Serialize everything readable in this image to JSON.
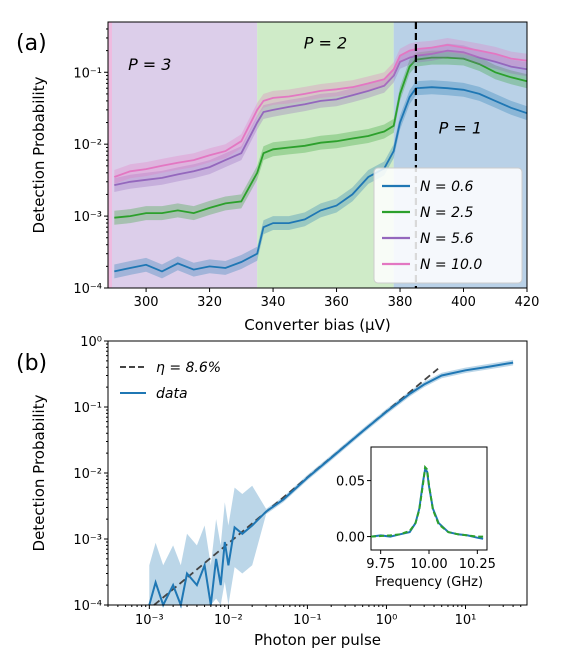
{
  "chart_data": [
    {
      "panel": "(a)",
      "type": "line",
      "xlabel": "Converter bias (µV)",
      "ylabel": "Detection Probability",
      "xlim": [
        288,
        420
      ],
      "ylim": [
        0.0001,
        0.5
      ],
      "yscale": "log",
      "xticks": [
        300,
        320,
        340,
        360,
        380,
        400,
        420
      ],
      "yticks": [
        {
          "v": 0.0001,
          "label": "10⁻⁴"
        },
        {
          "v": 0.001,
          "label": "10⁻³"
        },
        {
          "v": 0.01,
          "label": "10⁻²"
        },
        {
          "v": 0.1,
          "label": "10⁻¹"
        }
      ],
      "grid": false,
      "legend_position": "lower-right",
      "regions": [
        {
          "label": "P = 3",
          "x0": 288,
          "x1": 335,
          "color": "#c9b3de"
        },
        {
          "label": "P = 2",
          "x0": 335,
          "x1": 378,
          "color": "#b6e0ab"
        },
        {
          "label": "P = 1",
          "x0": 378,
          "x1": 420,
          "color": "#93b9da"
        }
      ],
      "marker_line_x": 385,
      "series": [
        {
          "name": "N = 0.6",
          "color": "#1f77b4",
          "x": [
            290,
            295,
            300,
            305,
            310,
            315,
            320,
            325,
            330,
            335,
            337,
            340,
            345,
            350,
            355,
            360,
            365,
            370,
            375,
            378,
            380,
            383,
            385,
            390,
            395,
            400,
            405,
            410,
            415,
            420
          ],
          "y": [
            0.00017,
            0.00019,
            0.00021,
            0.00017,
            0.00022,
            0.00018,
            0.0002,
            0.00019,
            0.00023,
            0.0003,
            0.0007,
            0.0008,
            0.0008,
            0.0009,
            0.0012,
            0.0014,
            0.002,
            0.0035,
            0.0046,
            0.008,
            0.02,
            0.045,
            0.06,
            0.062,
            0.06,
            0.057,
            0.05,
            0.04,
            0.032,
            0.027
          ]
        },
        {
          "name": "N = 2.5",
          "color": "#2ca02c",
          "x": [
            290,
            295,
            300,
            305,
            310,
            315,
            320,
            325,
            330,
            335,
            337,
            340,
            345,
            350,
            355,
            360,
            365,
            370,
            375,
            378,
            380,
            383,
            385,
            390,
            395,
            400,
            405,
            410,
            415,
            420
          ],
          "y": [
            0.00095,
            0.001,
            0.0011,
            0.0011,
            0.0012,
            0.0011,
            0.0013,
            0.0015,
            0.0016,
            0.004,
            0.0075,
            0.0085,
            0.009,
            0.0095,
            0.0105,
            0.011,
            0.012,
            0.013,
            0.015,
            0.018,
            0.05,
            0.12,
            0.15,
            0.16,
            0.16,
            0.155,
            0.13,
            0.1,
            0.085,
            0.075
          ]
        },
        {
          "name": "N = 5.6",
          "color": "#9467bd",
          "x": [
            290,
            295,
            300,
            305,
            310,
            315,
            320,
            325,
            330,
            335,
            337,
            340,
            345,
            350,
            355,
            360,
            365,
            370,
            375,
            378,
            380,
            383,
            385,
            390,
            395,
            400,
            405,
            410,
            415,
            420
          ],
          "y": [
            0.0027,
            0.003,
            0.0032,
            0.0034,
            0.0038,
            0.0042,
            0.0048,
            0.006,
            0.0075,
            0.02,
            0.028,
            0.03,
            0.033,
            0.036,
            0.04,
            0.042,
            0.048,
            0.055,
            0.065,
            0.09,
            0.14,
            0.16,
            0.17,
            0.18,
            0.2,
            0.19,
            0.16,
            0.14,
            0.12,
            0.11
          ]
        },
        {
          "name": "N = 10.0",
          "color": "#e377c2",
          "x": [
            290,
            295,
            300,
            305,
            310,
            315,
            320,
            325,
            330,
            335,
            337,
            340,
            345,
            350,
            355,
            360,
            365,
            370,
            375,
            378,
            380,
            383,
            385,
            390,
            395,
            400,
            405,
            410,
            415,
            420
          ],
          "y": [
            0.0035,
            0.0042,
            0.0045,
            0.005,
            0.0055,
            0.006,
            0.007,
            0.008,
            0.011,
            0.03,
            0.04,
            0.044,
            0.046,
            0.05,
            0.055,
            0.058,
            0.062,
            0.07,
            0.08,
            0.11,
            0.17,
            0.2,
            0.21,
            0.22,
            0.24,
            0.22,
            0.2,
            0.18,
            0.155,
            0.145
          ]
        }
      ]
    },
    {
      "panel": "(b)",
      "type": "line",
      "xlabel": "Photon per pulse",
      "ylabel": "Detection Probability",
      "xscale": "log",
      "yscale": "log",
      "xlim": [
        0.0003,
        60
      ],
      "ylim": [
        0.0001,
        1
      ],
      "xticks": [
        {
          "v": 0.001,
          "label": "10⁻³"
        },
        {
          "v": 0.01,
          "label": "10⁻²"
        },
        {
          "v": 0.1,
          "label": "10⁻¹"
        },
        {
          "v": 1,
          "label": "10⁰"
        },
        {
          "v": 10,
          "label": "10¹"
        }
      ],
      "yticks": [
        {
          "v": 0.0001,
          "label": "10⁻⁴"
        },
        {
          "v": 0.001,
          "label": "10⁻³"
        },
        {
          "v": 0.01,
          "label": "10⁻²"
        },
        {
          "v": 0.1,
          "label": "10⁻¹"
        },
        {
          "v": 1,
          "label": "10⁰"
        }
      ],
      "grid": false,
      "legend_position": "top-left",
      "series": [
        {
          "name": "η = 8.6%",
          "style": "dashed",
          "color": "#444444",
          "x": [
            0.00115,
            0.01,
            0.1,
            1,
            4.5
          ],
          "y": [
            0.0001,
            0.00086,
            0.0086,
            0.086,
            0.38
          ]
        },
        {
          "name": "data",
          "color": "#1f77b4",
          "x": [
            0.001,
            0.0012,
            0.0015,
            0.002,
            0.0025,
            0.003,
            0.004,
            0.005,
            0.006,
            0.007,
            0.008,
            0.009,
            0.01,
            0.012,
            0.015,
            0.02,
            0.03,
            0.05,
            0.1,
            0.2,
            0.5,
            1,
            2,
            3,
            5,
            10,
            20,
            40
          ],
          "y": [
            0.0001,
            0.00022,
            0.0001,
            0.0002,
            0.0001,
            0.0003,
            0.0002,
            0.0004,
            0.0001,
            0.0005,
            0.0002,
            0.0009,
            0.0004,
            0.0015,
            0.0012,
            0.0016,
            0.0026,
            0.004,
            0.0085,
            0.017,
            0.043,
            0.085,
            0.16,
            0.22,
            0.3,
            0.36,
            0.41,
            0.47
          ]
        }
      ],
      "inset": {
        "xlabel": "Frequency (GHz)",
        "xlim": [
          9.7,
          10.3
        ],
        "ylim": [
          -0.012,
          0.08
        ],
        "xticks": [
          {
            "v": 9.75,
            "label": "9.75"
          },
          {
            "v": 10.0,
            "label": "10.00"
          },
          {
            "v": 10.25,
            "label": "10.25"
          }
        ],
        "yticks": [
          {
            "v": 0.0,
            "label": "0.00"
          },
          {
            "v": 0.05,
            "label": "0.05"
          }
        ],
        "series": [
          {
            "color": "#1f77b4",
            "x": [
              9.7,
              9.75,
              9.8,
              9.85,
              9.9,
              9.93,
              9.95,
              9.97,
              9.98,
              9.99,
              10.0,
              10.02,
              10.05,
              10.1,
              10.15,
              10.2,
              10.25,
              10.28
            ],
            "y": [
              0.0,
              0.001,
              0.0,
              0.002,
              0.004,
              0.012,
              0.025,
              0.05,
              0.06,
              0.058,
              0.045,
              0.025,
              0.012,
              0.004,
              0.002,
              0.001,
              -0.001,
              -0.002
            ]
          },
          {
            "color": "#2ca02c",
            "style": "dashed",
            "x": [
              9.7,
              9.75,
              9.8,
              9.85,
              9.9,
              9.93,
              9.95,
              9.97,
              9.98,
              9.99,
              10.0,
              10.02,
              10.05,
              10.1,
              10.15,
              10.2,
              10.25,
              10.28
            ],
            "y": [
              0.0,
              0.0005,
              0.001,
              0.002,
              0.005,
              0.012,
              0.024,
              0.048,
              0.062,
              0.06,
              0.046,
              0.024,
              0.011,
              0.004,
              0.002,
              0.001,
              0.0,
              0.0
            ]
          }
        ]
      }
    }
  ]
}
